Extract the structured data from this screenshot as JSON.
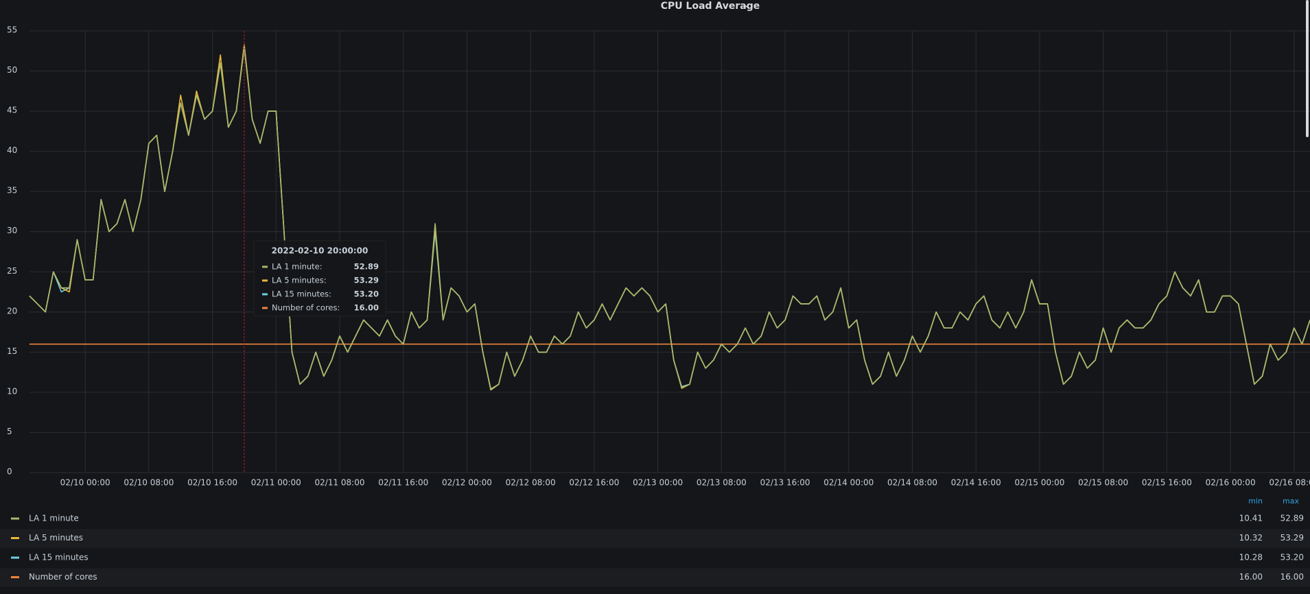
{
  "chart_data": {
    "type": "line",
    "title": "CPU Load Average",
    "grid": true,
    "x": [
      "2022-02-09 17:00:00",
      "2022-02-09 18:00:00",
      "2022-02-09 19:00:00",
      "2022-02-09 20:00:00",
      "2022-02-09 21:00:00",
      "2022-02-09 22:00:00",
      "2022-02-09 23:00:00",
      "2022-02-10 00:00:00",
      "2022-02-10 01:00:00",
      "2022-02-10 02:00:00",
      "2022-02-10 03:00:00",
      "2022-02-10 04:00:00",
      "2022-02-10 05:00:00",
      "2022-02-10 06:00:00",
      "2022-02-10 07:00:00",
      "2022-02-10 08:00:00",
      "2022-02-10 09:00:00",
      "2022-02-10 10:00:00",
      "2022-02-10 11:00:00",
      "2022-02-10 12:00:00",
      "2022-02-10 13:00:00",
      "2022-02-10 14:00:00",
      "2022-02-10 15:00:00",
      "2022-02-10 16:00:00",
      "2022-02-10 17:00:00",
      "2022-02-10 18:00:00",
      "2022-02-10 19:00:00",
      "2022-02-10 20:00:00",
      "2022-02-10 21:00:00",
      "2022-02-10 22:00:00",
      "2022-02-10 23:00:00",
      "2022-02-11 00:00:00",
      "2022-02-11 01:00:00",
      "2022-02-11 02:00:00",
      "2022-02-11 03:00:00",
      "2022-02-11 04:00:00",
      "2022-02-11 05:00:00",
      "2022-02-11 06:00:00",
      "2022-02-11 07:00:00",
      "2022-02-11 08:00:00",
      "2022-02-11 09:00:00",
      "2022-02-11 10:00:00",
      "2022-02-11 11:00:00",
      "2022-02-11 12:00:00",
      "2022-02-11 13:00:00",
      "2022-02-11 14:00:00",
      "2022-02-11 15:00:00",
      "2022-02-11 16:00:00",
      "2022-02-11 17:00:00",
      "2022-02-11 18:00:00",
      "2022-02-11 19:00:00",
      "2022-02-11 20:00:00",
      "2022-02-11 21:00:00",
      "2022-02-11 22:00:00",
      "2022-02-11 23:00:00",
      "2022-02-12 00:00:00",
      "2022-02-12 01:00:00",
      "2022-02-12 02:00:00",
      "2022-02-12 03:00:00",
      "2022-02-12 04:00:00",
      "2022-02-12 05:00:00",
      "2022-02-12 06:00:00",
      "2022-02-12 07:00:00",
      "2022-02-12 08:00:00",
      "2022-02-12 09:00:00",
      "2022-02-12 10:00:00",
      "2022-02-12 11:00:00",
      "2022-02-12 12:00:00",
      "2022-02-12 13:00:00",
      "2022-02-12 14:00:00",
      "2022-02-12 15:00:00",
      "2022-02-12 16:00:00",
      "2022-02-12 17:00:00",
      "2022-02-12 18:00:00",
      "2022-02-12 19:00:00",
      "2022-02-12 20:00:00",
      "2022-02-12 21:00:00",
      "2022-02-12 22:00:00",
      "2022-02-12 23:00:00",
      "2022-02-13 00:00:00",
      "2022-02-13 01:00:00",
      "2022-02-13 02:00:00",
      "2022-02-13 03:00:00",
      "2022-02-13 04:00:00",
      "2022-02-13 05:00:00",
      "2022-02-13 06:00:00",
      "2022-02-13 07:00:00",
      "2022-02-13 08:00:00",
      "2022-02-13 09:00:00",
      "2022-02-13 10:00:00",
      "2022-02-13 11:00:00",
      "2022-02-13 12:00:00",
      "2022-02-13 13:00:00",
      "2022-02-13 14:00:00",
      "2022-02-13 15:00:00",
      "2022-02-13 16:00:00",
      "2022-02-13 17:00:00",
      "2022-02-13 18:00:00",
      "2022-02-13 19:00:00",
      "2022-02-13 20:00:00",
      "2022-02-13 21:00:00",
      "2022-02-13 22:00:00",
      "2022-02-13 23:00:00",
      "2022-02-14 00:00:00",
      "2022-02-14 01:00:00",
      "2022-02-14 02:00:00",
      "2022-02-14 03:00:00",
      "2022-02-14 04:00:00",
      "2022-02-14 05:00:00",
      "2022-02-14 06:00:00",
      "2022-02-14 07:00:00",
      "2022-02-14 08:00:00",
      "2022-02-14 09:00:00",
      "2022-02-14 10:00:00",
      "2022-02-14 11:00:00",
      "2022-02-14 12:00:00",
      "2022-02-14 13:00:00",
      "2022-02-14 14:00:00",
      "2022-02-14 15:00:00",
      "2022-02-14 16:00:00",
      "2022-02-14 17:00:00",
      "2022-02-14 18:00:00",
      "2022-02-14 19:00:00",
      "2022-02-14 20:00:00",
      "2022-02-14 21:00:00",
      "2022-02-14 22:00:00",
      "2022-02-14 23:00:00",
      "2022-02-15 00:00:00",
      "2022-02-15 01:00:00",
      "2022-02-15 02:00:00",
      "2022-02-15 03:00:00",
      "2022-02-15 04:00:00",
      "2022-02-15 05:00:00",
      "2022-02-15 06:00:00",
      "2022-02-15 07:00:00",
      "2022-02-15 08:00:00",
      "2022-02-15 09:00:00",
      "2022-02-15 10:00:00",
      "2022-02-15 11:00:00",
      "2022-02-15 12:00:00",
      "2022-02-15 13:00:00",
      "2022-02-15 14:00:00",
      "2022-02-15 15:00:00",
      "2022-02-15 16:00:00",
      "2022-02-15 17:00:00",
      "2022-02-15 18:00:00",
      "2022-02-15 19:00:00",
      "2022-02-15 20:00:00",
      "2022-02-15 21:00:00",
      "2022-02-15 22:00:00",
      "2022-02-15 23:00:00",
      "2022-02-16 00:00:00",
      "2022-02-16 01:00:00",
      "2022-02-16 02:00:00",
      "2022-02-16 03:00:00",
      "2022-02-16 04:00:00",
      "2022-02-16 05:00:00",
      "2022-02-16 06:00:00",
      "2022-02-16 07:00:00",
      "2022-02-16 08:00:00",
      "2022-02-16 09:00:00",
      "2022-02-16 10:00:00"
    ],
    "xlim": [
      "2022-02-09 17:00:00",
      "2022-02-16 10:00:00"
    ],
    "xticks": [
      {
        "value": "2022-02-10 00:00:00",
        "label": "02/10 00:00"
      },
      {
        "value": "2022-02-10 08:00:00",
        "label": "02/10 08:00"
      },
      {
        "value": "2022-02-10 16:00:00",
        "label": "02/10 16:00"
      },
      {
        "value": "2022-02-11 00:00:00",
        "label": "02/11 00:00"
      },
      {
        "value": "2022-02-11 08:00:00",
        "label": "02/11 08:00"
      },
      {
        "value": "2022-02-11 16:00:00",
        "label": "02/11 16:00"
      },
      {
        "value": "2022-02-12 00:00:00",
        "label": "02/12 00:00"
      },
      {
        "value": "2022-02-12 08:00:00",
        "label": "02/12 08:00"
      },
      {
        "value": "2022-02-12 16:00:00",
        "label": "02/12 16:00"
      },
      {
        "value": "2022-02-13 00:00:00",
        "label": "02/13 00:00"
      },
      {
        "value": "2022-02-13 08:00:00",
        "label": "02/13 08:00"
      },
      {
        "value": "2022-02-13 16:00:00",
        "label": "02/13 16:00"
      },
      {
        "value": "2022-02-14 00:00:00",
        "label": "02/14 00:00"
      },
      {
        "value": "2022-02-14 08:00:00",
        "label": "02/14 08:00"
      },
      {
        "value": "2022-02-14 16:00:00",
        "label": "02/14 16:00"
      },
      {
        "value": "2022-02-15 00:00:00",
        "label": "02/15 00:00"
      },
      {
        "value": "2022-02-15 08:00:00",
        "label": "02/15 08:00"
      },
      {
        "value": "2022-02-15 16:00:00",
        "label": "02/15 16:00"
      },
      {
        "value": "2022-02-16 00:00:00",
        "label": "02/16 00:00"
      },
      {
        "value": "2022-02-16 08:00:00",
        "label": "02/16 08:00"
      }
    ],
    "ylim": [
      0,
      55
    ],
    "yticks": [
      0,
      5,
      10,
      15,
      20,
      25,
      30,
      35,
      40,
      45,
      50,
      55
    ],
    "series": [
      {
        "name": "LA 1 minute",
        "color": "#a9b86e",
        "values": [
          22,
          21,
          20,
          25,
          23,
          23,
          29,
          24,
          24,
          34,
          30,
          31,
          34,
          30,
          34,
          41,
          42,
          35,
          40,
          46,
          42,
          47,
          44,
          45,
          51,
          43,
          45,
          52.89,
          44,
          41,
          45,
          45,
          30,
          15,
          11,
          12,
          15,
          12,
          14,
          17,
          15,
          17,
          19,
          18,
          17,
          19,
          17,
          16,
          20,
          18,
          19,
          31,
          19,
          23,
          22,
          20,
          21,
          15,
          10.41,
          11,
          15,
          12,
          14,
          17,
          15,
          15,
          17,
          16,
          17,
          20,
          18,
          19,
          21,
          19,
          21,
          23,
          22,
          23,
          22,
          20,
          21,
          14,
          10.6,
          11,
          15,
          13,
          14,
          16,
          15,
          16,
          18,
          16,
          17,
          20,
          18,
          19,
          22,
          21,
          21,
          22,
          19,
          20,
          23,
          18,
          19,
          14,
          11,
          12,
          15,
          12,
          14,
          17,
          15,
          17,
          20,
          18,
          18,
          20,
          19,
          21,
          22,
          19,
          18,
          20,
          18,
          20,
          24,
          21,
          21,
          15,
          11,
          12,
          15,
          13,
          14,
          18,
          15,
          18,
          19,
          18,
          18,
          19,
          21,
          22,
          25,
          23,
          22,
          24,
          20,
          20,
          22,
          22,
          21,
          16,
          11,
          12,
          16,
          14,
          15,
          18,
          16,
          19
        ]
      },
      {
        "name": "LA 5 minutes",
        "color": "#eab839",
        "values": [
          22,
          21,
          20,
          25,
          23,
          22.5,
          29,
          24,
          24,
          34,
          30,
          31,
          34,
          30,
          34,
          41,
          42,
          35,
          40,
          47,
          42,
          47.5,
          44,
          45,
          52,
          43,
          45,
          53.29,
          44,
          41,
          45,
          45,
          30,
          15,
          11,
          12,
          15,
          12,
          14,
          17,
          15,
          17,
          19,
          18,
          17,
          19,
          17,
          16,
          20,
          18,
          19,
          30.5,
          19,
          23,
          22,
          20,
          21,
          15,
          10.32,
          11,
          15,
          12,
          14,
          17,
          15,
          15,
          17,
          16,
          17,
          20,
          18,
          19,
          21,
          19,
          21,
          23,
          22,
          23,
          22,
          20,
          21,
          14,
          10.5,
          11,
          15,
          13,
          14,
          16,
          15,
          16,
          18,
          16,
          17,
          20,
          18,
          19,
          22,
          21,
          21,
          22,
          19,
          20,
          23,
          18,
          19,
          14,
          11,
          12,
          15,
          12,
          14,
          17,
          15,
          17,
          20,
          18,
          18,
          20,
          19,
          21,
          22,
          19,
          18,
          20,
          18,
          20,
          24,
          21,
          21,
          15,
          11,
          12,
          15,
          13,
          14,
          18,
          15,
          18,
          19,
          18,
          18,
          19,
          21,
          22,
          25,
          23,
          22,
          24,
          20,
          20,
          22,
          22,
          21,
          16,
          11,
          12,
          16,
          14,
          15,
          18,
          16,
          19
        ]
      },
      {
        "name": "LA 15 minutes",
        "color": "#6ed0e0",
        "values": [
          22,
          21,
          20,
          25,
          22.5,
          23,
          29,
          24,
          24,
          34,
          30,
          31,
          34,
          30,
          34,
          41,
          42,
          35,
          40,
          46,
          42,
          47,
          44,
          45,
          51,
          43,
          45,
          53.2,
          44,
          41,
          45,
          45,
          30,
          15,
          11,
          12,
          15,
          12,
          14,
          17,
          15,
          17,
          19,
          18,
          17,
          19,
          17,
          16,
          20,
          18,
          19,
          30,
          19,
          23,
          22,
          20,
          21,
          15,
          10.28,
          11,
          15,
          12,
          14,
          17,
          15,
          15,
          17,
          16,
          17,
          20,
          18,
          19,
          21,
          19,
          21,
          23,
          22,
          23,
          22,
          20,
          21,
          14,
          10.7,
          11,
          15,
          13,
          14,
          16,
          15,
          16,
          18,
          16,
          17,
          20,
          18,
          19,
          22,
          21,
          21,
          22,
          19,
          20,
          23,
          18,
          19,
          14,
          11,
          12,
          15,
          12,
          14,
          17,
          15,
          17,
          20,
          18,
          18,
          20,
          19,
          21,
          22,
          19,
          18,
          20,
          18,
          20,
          24,
          21,
          21,
          15,
          11,
          12,
          15,
          13,
          14,
          18,
          15,
          18,
          19,
          18,
          18,
          19,
          21,
          22,
          25,
          23,
          22,
          24,
          20,
          20,
          22,
          22,
          21,
          16,
          11,
          12,
          16,
          14,
          15,
          18,
          16,
          19
        ]
      },
      {
        "name": "Number of cores",
        "color": "#ef843c",
        "values": [
          16,
          16,
          16,
          16,
          16,
          16,
          16,
          16,
          16,
          16,
          16,
          16,
          16,
          16,
          16,
          16,
          16,
          16,
          16,
          16,
          16,
          16,
          16,
          16,
          16,
          16,
          16,
          16,
          16,
          16,
          16,
          16,
          16,
          16,
          16,
          16,
          16,
          16,
          16,
          16,
          16,
          16,
          16,
          16,
          16,
          16,
          16,
          16,
          16,
          16,
          16,
          16,
          16,
          16,
          16,
          16,
          16,
          16,
          16,
          16,
          16,
          16,
          16,
          16,
          16,
          16,
          16,
          16,
          16,
          16,
          16,
          16,
          16,
          16,
          16,
          16,
          16,
          16,
          16,
          16,
          16,
          16,
          16,
          16,
          16,
          16,
          16,
          16,
          16,
          16,
          16,
          16,
          16,
          16,
          16,
          16,
          16,
          16,
          16,
          16,
          16,
          16,
          16,
          16,
          16,
          16,
          16,
          16,
          16,
          16,
          16,
          16,
          16,
          16,
          16,
          16,
          16,
          16,
          16,
          16,
          16,
          16,
          16,
          16,
          16,
          16,
          16,
          16,
          16,
          16,
          16,
          16,
          16,
          16,
          16,
          16,
          16,
          16,
          16,
          16,
          16,
          16,
          16,
          16,
          16,
          16,
          16,
          16,
          16,
          16,
          16,
          16,
          16,
          16,
          16,
          16,
          16,
          16,
          16,
          16,
          16,
          16
        ]
      }
    ],
    "tooltip": {
      "title": "2022-02-10 20:00:00",
      "rows": [
        {
          "label": "LA 1 minute:",
          "value": "52.89"
        },
        {
          "label": "LA 5 minutes:",
          "value": "53.29"
        },
        {
          "label": "LA 15 minutes:",
          "value": "53.20"
        },
        {
          "label": "Number of cores:",
          "value": "16.00"
        }
      ]
    },
    "legend": {
      "headers": [
        "min",
        "max"
      ],
      "rows": [
        [
          "10.41",
          "52.89"
        ],
        [
          "10.32",
          "53.29"
        ],
        [
          "10.28",
          "53.20"
        ],
        [
          "16.00",
          "16.00"
        ]
      ]
    }
  }
}
